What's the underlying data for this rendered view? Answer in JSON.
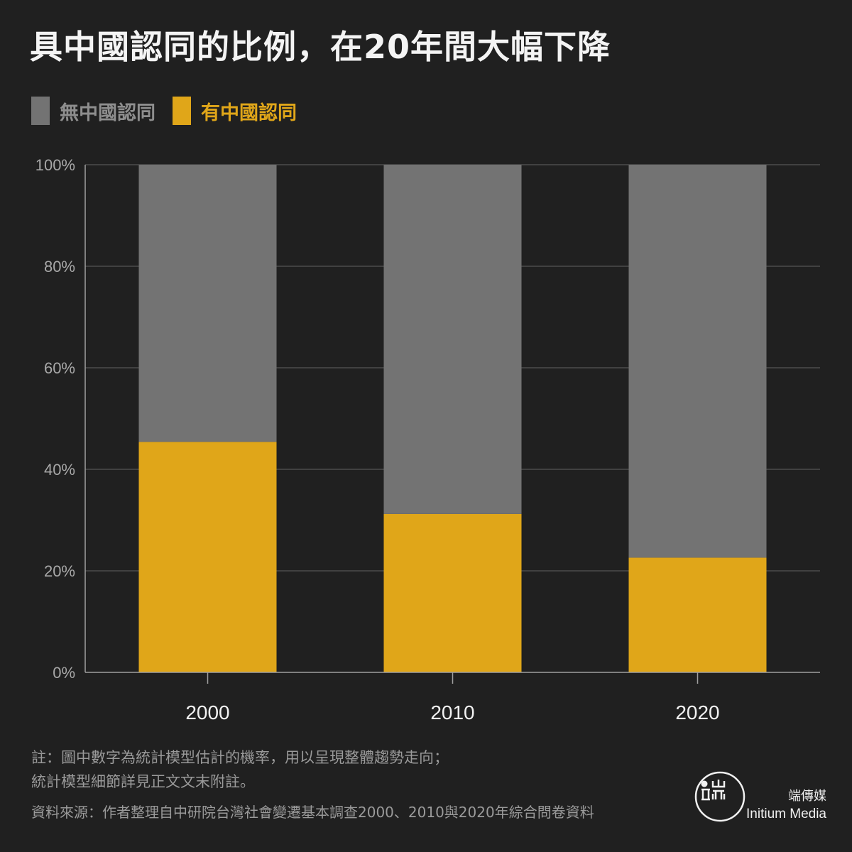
{
  "title": "具中國認同的比例，在20年間大幅下降",
  "legend": {
    "items": [
      {
        "label": "無中國認同",
        "color": "#737373",
        "text_color": "#8e8e8e"
      },
      {
        "label": "有中國認同",
        "color": "#e0a619",
        "text_color": "#e0a619"
      }
    ]
  },
  "chart_data": {
    "type": "bar",
    "stacked": true,
    "categories": [
      "2000",
      "2010",
      "2020"
    ],
    "series": [
      {
        "name": "有中國認同",
        "values": [
          45.4,
          31.2,
          22.6
        ],
        "color": "#e0a619"
      },
      {
        "name": "無中國認同",
        "values": [
          54.6,
          68.8,
          77.4
        ],
        "color": "#737373"
      }
    ],
    "y_ticks": [
      "0%",
      "20%",
      "40%",
      "60%",
      "80%",
      "100%"
    ],
    "ylim": [
      0,
      100
    ],
    "grid": true,
    "legend_position": "top-left",
    "xlabel": "",
    "ylabel": ""
  },
  "notes": {
    "line1": "註：圖中數字為統計模型估計的機率，用以呈現整體趨勢走向；",
    "line2": "統計模型細節詳見正文文末附註。"
  },
  "source": "資料來源：作者整理自中研院台灣社會變遷基本調查2000、2010與2020年綜合問卷資料",
  "brand": {
    "logo_glyphs": "Ⅱ 山 而",
    "name_cn": "端傳媒",
    "name_en": "Initium Media"
  }
}
